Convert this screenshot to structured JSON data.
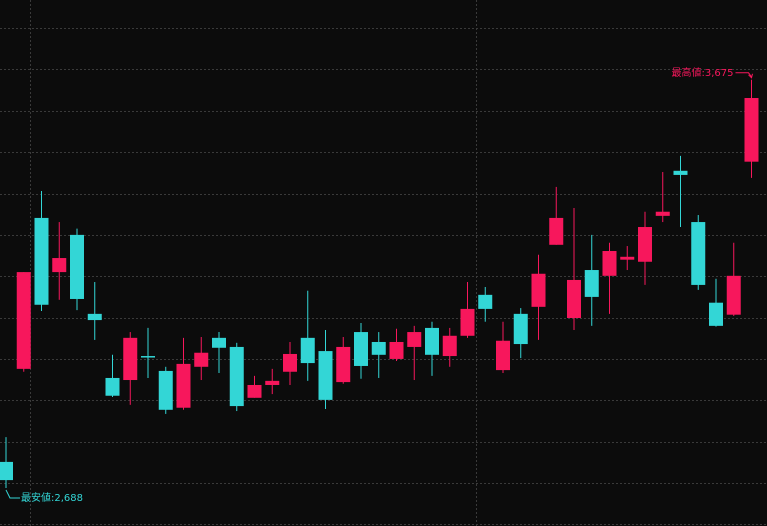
{
  "chart_data": {
    "type": "candlestick",
    "up_color": "#f7175c",
    "down_color": "#33d6d6",
    "ylim": [
      2596,
      3868
    ],
    "yticks": [
      2600,
      2700,
      2800,
      2900,
      3000,
      3100,
      3200,
      3300,
      3400,
      3500,
      3600,
      3700,
      3800
    ],
    "grid": true,
    "open": [
      2751,
      2976,
      3341,
      3210,
      3300,
      3109,
      2954,
      2949,
      3007,
      2971,
      2882,
      2981,
      3051,
      3029,
      2906,
      2937,
      2969,
      3051,
      3019,
      2944,
      3065,
      3041,
      3000,
      3029,
      3075,
      3007,
      3056,
      3155,
      2973,
      3109,
      3126,
      3276,
      3099,
      3215,
      3201,
      3240,
      3235,
      3346,
      3455,
      3331,
      3136,
      3107,
      3477
    ],
    "high": [
      2811,
      3210,
      3406,
      3331,
      3315,
      3186,
      3010,
      3065,
      3075,
      2981,
      3051,
      3053,
      3065,
      3039,
      2959,
      2976,
      3041,
      3165,
      3070,
      3053,
      3087,
      3065,
      3073,
      3080,
      3090,
      3075,
      3186,
      3174,
      3090,
      3123,
      3252,
      3416,
      3365,
      3300,
      3281,
      3273,
      3356,
      3452,
      3491,
      3348,
      3194,
      3281,
      3675
    ],
    "low": [
      2688,
      2969,
      3116,
      3143,
      3118,
      3046,
      2908,
      2889,
      2954,
      2867,
      2877,
      2949,
      2966,
      2874,
      2906,
      2915,
      2937,
      2947,
      2879,
      2940,
      2952,
      2954,
      2995,
      2949,
      2959,
      2981,
      3051,
      3090,
      2966,
      3002,
      3046,
      3276,
      3070,
      3080,
      3109,
      3215,
      3179,
      3331,
      3319,
      3167,
      3078,
      3104,
      3438
    ],
    "close": [
      2707,
      3210,
      3131,
      3244,
      3145,
      3094,
      2911,
      3051,
      3005,
      2877,
      2988,
      3015,
      3027,
      2886,
      2937,
      2947,
      3012,
      2990,
      2901,
      3029,
      2983,
      3010,
      3041,
      3065,
      3010,
      3056,
      3121,
      3121,
      3044,
      3036,
      3206,
      3341,
      3191,
      3150,
      3261,
      3247,
      3319,
      3356,
      3445,
      3179,
      3080,
      3201,
      3631
    ],
    "annotations": [
      {
        "text": "最高値:3,675",
        "value": 3675,
        "index": 42,
        "color": "#f7175c"
      },
      {
        "text": "最安値:2,688",
        "value": 2688,
        "index": 0,
        "color": "#33d6d6"
      }
    ]
  }
}
